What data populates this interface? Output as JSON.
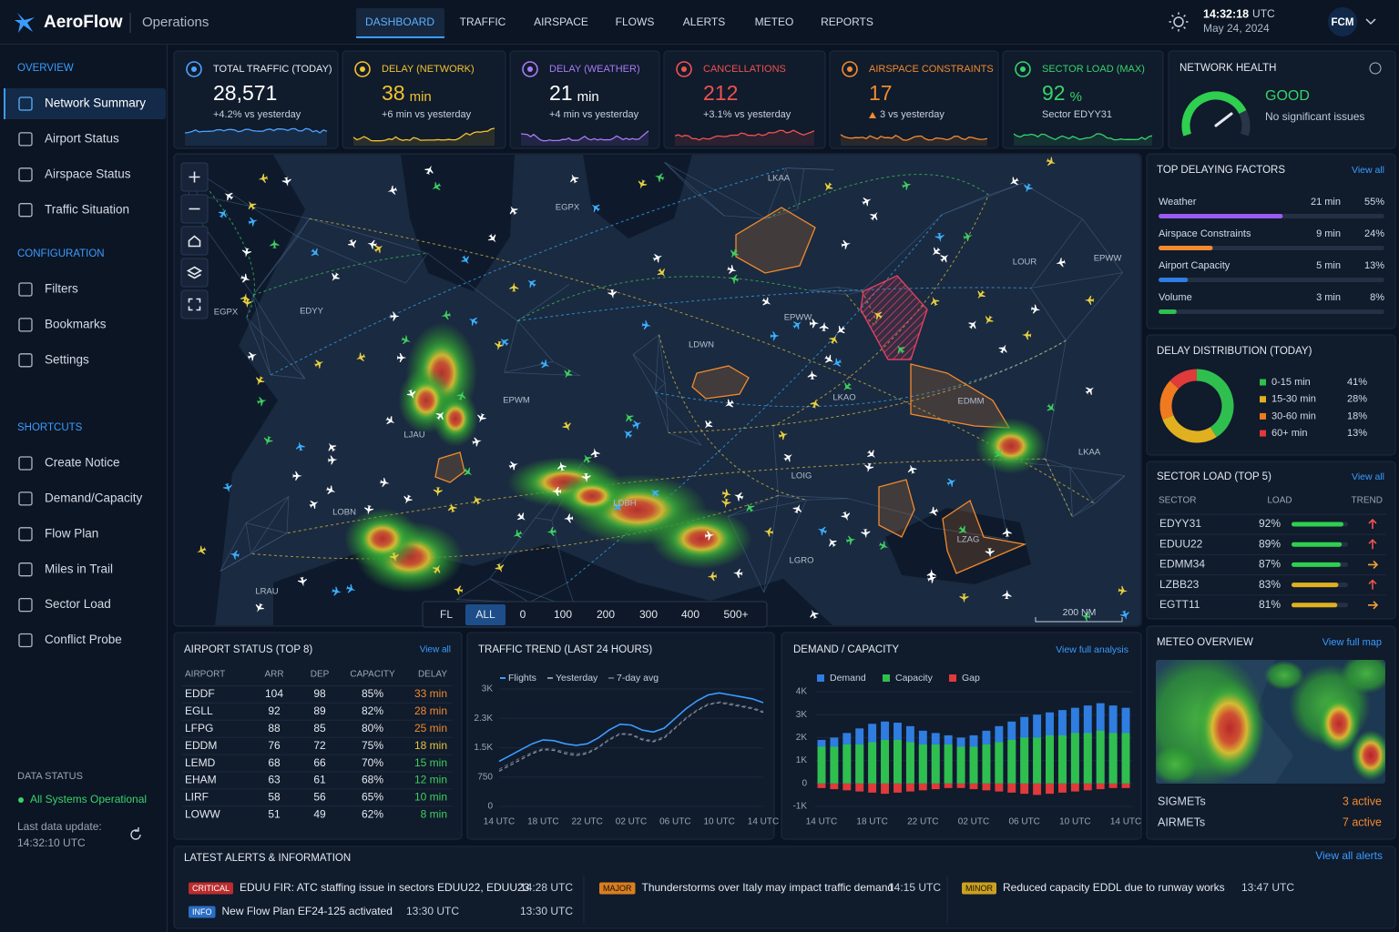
{
  "header": {
    "brand": "AeroFlow",
    "section": "Operations",
    "tabs": [
      "DASHBOARD",
      "TRAFFIC",
      "AIRSPACE",
      "FLOWS",
      "ALERTS",
      "METEO",
      "REPORTS"
    ],
    "active_tab": 0,
    "time": "14:32:18",
    "time_zone": "UTC",
    "date": "May 24, 2024",
    "user": "FCM"
  },
  "sidebar": {
    "sections": [
      {
        "title": "OVERVIEW",
        "items": [
          "Network Summary",
          "Airport Status",
          "Airspace Status",
          "Traffic Situation"
        ]
      },
      {
        "title": "CONFIGURATION",
        "items": [
          "Filters",
          "Bookmarks",
          "Settings"
        ]
      },
      {
        "title": "SHORTCUTS",
        "items": [
          "Create Notice",
          "Demand/Capacity",
          "Flow Plan",
          "Miles in Trail",
          "Sector Load",
          "Conflict Probe"
        ]
      }
    ],
    "active": [
      0,
      0
    ],
    "status_title": "DATA STATUS",
    "status": "All Systems Operational",
    "update_label": "Last data update:",
    "update_time": "14:32:10 UTC"
  },
  "kpis": [
    {
      "title": "TOTAL TRAFFIC (TODAY)",
      "value": "28,571",
      "sub": "+4.2% vs yesterday",
      "color": "#4ea3ff",
      "value_color": "#ffffff"
    },
    {
      "title": "DELAY (NETWORK)",
      "value": "38",
      "unit": "min",
      "sub": "+6 min vs yesterday",
      "color": "#f2c230",
      "value_color": "#f2c230"
    },
    {
      "title": "DELAY (WEATHER)",
      "value": "21",
      "unit": "min",
      "sub": "+4 min vs yesterday",
      "color": "#a77bf3",
      "value_color": "#ffffff"
    },
    {
      "title": "CANCELLATIONS",
      "value": "212",
      "sub": "+3.1% vs yesterday",
      "color": "#f0524f",
      "value_color": "#f0524f"
    },
    {
      "title": "AIRSPACE CONSTRAINTS",
      "value": "17",
      "sub": "3 vs yesterday",
      "up": true,
      "color": "#f28a2e",
      "value_color": "#f28a2e"
    },
    {
      "title": "SECTOR LOAD (MAX)",
      "value": "92",
      "unit": "%",
      "sub": "Sector EDYY31",
      "color": "#37d36a",
      "value_color": "#37d36a"
    }
  ],
  "network_health": {
    "title": "NETWORK HEALTH",
    "status": "GOOD",
    "note": "No significant issues"
  },
  "map": {
    "labels": [
      "LKAA",
      "EGPX",
      "EPWW",
      "LOUR",
      "EGPX",
      "EDYY",
      "EPWW",
      "LDWN",
      "EPWM",
      "LKAO",
      "EDMM",
      "LKAA",
      "LJAU",
      "LOIG",
      "LDBH",
      "LOBN",
      "LZAG",
      "LGRO",
      "LRAU"
    ],
    "fl_label": "FL",
    "fl_options": [
      "ALL",
      "0",
      "100",
      "200",
      "300",
      "400",
      "500+"
    ],
    "fl_active": 0,
    "scale": "200 NM"
  },
  "delaying_factors": {
    "title": "TOP DELAYING FACTORS",
    "link": "View all",
    "rows": [
      {
        "name": "Weather",
        "delay": "21 min",
        "share": {
          "value": 55,
          "label": "55%"
        },
        "color": "#9a5cf0"
      },
      {
        "name": "Airspace Constraints",
        "delay": "9 min",
        "share": {
          "value": 24,
          "label": "24%"
        },
        "color": "#f28a2e"
      },
      {
        "name": "Airport Capacity",
        "delay": "5 min",
        "share": {
          "value": 13,
          "label": "13%"
        },
        "color": "#2f7de0"
      },
      {
        "name": "Volume",
        "delay": "3 min",
        "share": {
          "value": 8,
          "label": "8%"
        },
        "color": "#2fbf4f"
      }
    ]
  },
  "sector_load": {
    "title": "SECTOR LOAD (TOP 5)",
    "link": "View all",
    "columns": [
      "SECTOR",
      "LOAD",
      "TREND"
    ],
    "rows": [
      {
        "sector": "EDYY31",
        "load": {
          "value": 92,
          "label": "92%"
        },
        "trend": "up",
        "color": "#2fcf4f"
      },
      {
        "sector": "EDUU22",
        "load": {
          "value": 89,
          "label": "89%"
        },
        "trend": "up",
        "color": "#2fcf4f"
      },
      {
        "sector": "EDMM34",
        "load": {
          "value": 87,
          "label": "87%"
        },
        "trend": "right",
        "color": "#2fcf4f"
      },
      {
        "sector": "LZBB23",
        "load": {
          "value": 83,
          "label": "83%"
        },
        "trend": "up",
        "color": "#e0b020"
      },
      {
        "sector": "EGTT11",
        "load": {
          "value": 81,
          "label": "81%"
        },
        "trend": "right",
        "color": "#e0b020"
      }
    ]
  },
  "meteo": {
    "title": "METEO OVERVIEW",
    "link": "View full map",
    "rows": [
      {
        "name": "SIGMETs",
        "value": "3 active"
      },
      {
        "name": "AIRMETs",
        "value": "7 active"
      }
    ]
  },
  "airport_status": {
    "title": "AIRPORT STATUS (TOP 8)",
    "link": "View all",
    "columns": [
      "AIRPORT",
      "ARR",
      "DEP",
      "CAPACITY",
      "DELAY"
    ],
    "rows": [
      [
        "EDDF",
        "104",
        "98",
        "85%",
        "33 min"
      ],
      [
        "EGLL",
        "92",
        "89",
        "82%",
        "28 min"
      ],
      [
        "LFPG",
        "88",
        "85",
        "80%",
        "25 min"
      ],
      [
        "EDDM",
        "76",
        "72",
        "75%",
        "18 min"
      ],
      [
        "LEMD",
        "68",
        "66",
        "70%",
        "15 min"
      ],
      [
        "EHAM",
        "63",
        "61",
        "68%",
        "12 min"
      ],
      [
        "LIRF",
        "58",
        "56",
        "65%",
        "10 min"
      ],
      [
        "LOWW",
        "51",
        "49",
        "62%",
        "8 min"
      ]
    ],
    "delay_colors": [
      "#f28a2e",
      "#f28a2e",
      "#f28a2e",
      "#e8c440",
      "#3fcf5f",
      "#3fcf5f",
      "#3fcf5f",
      "#3fcf5f"
    ]
  },
  "alerts": {
    "title": "LATEST ALERTS & INFORMATION",
    "link": "View all alerts",
    "items": [
      {
        "level": "CRITICAL",
        "text": "EDUU FIR: ATC staffing issue in sectors EDUU22, EDUU23",
        "time": "14:28 UTC",
        "color": "#d9302f"
      },
      {
        "level": "INFO",
        "text": "New Flow Plan EF24-125 activated",
        "detail": "13:30 UTC",
        "time": "13:30 UTC",
        "color": "#2f7de0"
      },
      {
        "level": "MAJOR",
        "text": "Thunderstorms over Italy may impact traffic demand",
        "time": "14:15 UTC",
        "color": "#f08a20"
      },
      {
        "level": "MINOR",
        "text": "Reduced capacity EDDL due to runway works",
        "time": "13:47 UTC",
        "color": "#e0b020"
      }
    ]
  },
  "chart_data": [
    {
      "type": "line",
      "title": "TRAFFIC TREND (LAST 24 HOURS)",
      "categories": [
        "14 UTC",
        null,
        null,
        null,
        "18 UTC",
        null,
        null,
        null,
        "22 UTC",
        null,
        null,
        null,
        "02 UTC",
        null,
        null,
        null,
        "06 UTC",
        null,
        null,
        null,
        "10 UTC",
        null,
        null,
        null,
        "14 UTC"
      ],
      "series": [
        {
          "name": "Flights",
          "color": "#3b9cff",
          "style": "solid",
          "values": [
            1150,
            1300,
            1450,
            1600,
            1700,
            1680,
            1600,
            1560,
            1600,
            1750,
            1950,
            2100,
            2080,
            1950,
            1900,
            2000,
            2250,
            2500,
            2700,
            2850,
            2900,
            2850,
            2800,
            2750,
            2650
          ]
        },
        {
          "name": "Yesterday",
          "color": "#8a94a6",
          "style": "dashed",
          "values": [
            900,
            1050,
            1200,
            1350,
            1450,
            1430,
            1350,
            1300,
            1350,
            1500,
            1700,
            1850,
            1830,
            1700,
            1650,
            1750,
            2000,
            2250,
            2450,
            2600,
            2650,
            2600,
            2550,
            2500,
            2400
          ]
        },
        {
          "name": "7-day avg",
          "color": "#5b6577",
          "style": "dashed",
          "values": [
            950,
            1100,
            1250,
            1380,
            1480,
            1460,
            1390,
            1340,
            1380,
            1520,
            1720,
            1870,
            1850,
            1730,
            1680,
            1780,
            2020,
            2270,
            2470,
            2620,
            2670,
            2630,
            2580,
            2520,
            2430
          ]
        }
      ],
      "ylim": [
        0,
        3000
      ],
      "yticks": [
        0,
        750,
        {
          "value": 1500,
          "label": "1.5K"
        },
        {
          "value": 2250,
          "label": "2.3K"
        },
        {
          "value": 3000,
          "label": "3K"
        }
      ],
      "grid": true
    },
    {
      "type": "bar",
      "title": "DEMAND / CAPACITY",
      "link": "View full analysis",
      "categories": [
        "14 UTC",
        null,
        null,
        null,
        "18 UTC",
        null,
        null,
        null,
        "22 UTC",
        null,
        null,
        null,
        "02 UTC",
        null,
        null,
        null,
        "06 UTC",
        null,
        null,
        null,
        "10 UTC",
        null,
        null,
        null,
        "14 UTC"
      ],
      "series": [
        {
          "name": "Demand",
          "color": "#2f7de0",
          "values": [
            1900,
            2000,
            2200,
            2400,
            2600,
            2700,
            2650,
            2500,
            2300,
            2200,
            2100,
            2000,
            2100,
            2300,
            2500,
            2700,
            2900,
            3000,
            3100,
            3200,
            3300,
            3400,
            3500,
            3400,
            3300
          ]
        },
        {
          "name": "Capacity",
          "color": "#2fbf4f",
          "values": [
            1600,
            1600,
            1700,
            1700,
            1800,
            1900,
            1900,
            1800,
            1700,
            1700,
            1700,
            1600,
            1600,
            1700,
            1800,
            1900,
            2000,
            2000,
            2100,
            2100,
            2200,
            2200,
            2300,
            2200,
            2200
          ]
        },
        {
          "name": "Gap",
          "color": "#e03a3a",
          "values": [
            -200,
            -250,
            -300,
            -350,
            -400,
            -450,
            -400,
            -350,
            -300,
            -250,
            -200,
            -200,
            -250,
            -300,
            -350,
            -400,
            -450,
            -500,
            -450,
            -400,
            -350,
            -300,
            -250,
            -200,
            -200
          ]
        }
      ],
      "ylim": [
        -1000,
        4000
      ],
      "yticks": [
        {
          "value": -1000,
          "label": "-1K"
        },
        0,
        {
          "value": 1000,
          "label": "1K"
        },
        {
          "value": 2000,
          "label": "2K"
        },
        {
          "value": 3000,
          "label": "3K"
        },
        {
          "value": 4000,
          "label": "4K"
        }
      ],
      "grid": true
    },
    {
      "type": "pie",
      "donut": true,
      "title": "DELAY DISTRIBUTION (TODAY)",
      "categories": [
        "0-15 min",
        "15-30 min",
        "30-60 min",
        "60+ min"
      ],
      "values": [
        41,
        28,
        18,
        13
      ],
      "value_labels": [
        "41%",
        "28%",
        "18%",
        "13%"
      ],
      "colors": [
        "#2fbf4f",
        "#e0b020",
        "#f07a20",
        "#e03a3a"
      ]
    }
  ]
}
